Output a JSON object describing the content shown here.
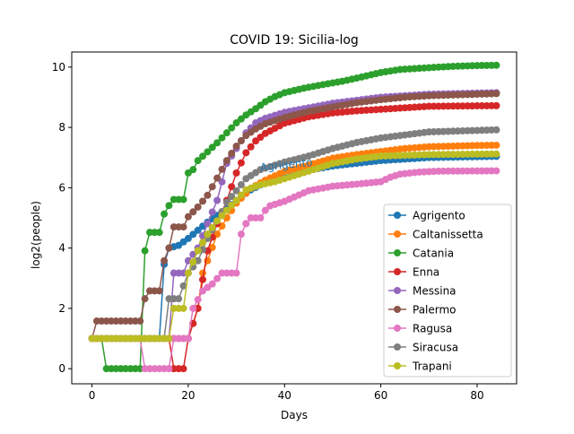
{
  "chart_data": {
    "type": "line",
    "title": "COVID 19: Sicilia-log",
    "xlabel": "Days",
    "ylabel": "log2(people)",
    "xlim": [
      -4.2,
      88.2
    ],
    "ylim": [
      -0.5,
      10.5
    ],
    "xticks": [
      0,
      20,
      40,
      60,
      80
    ],
    "yticks": [
      0,
      2,
      4,
      6,
      8,
      10
    ],
    "grid": false,
    "legend_position": "lower right",
    "annotation": {
      "text": "Agrigento",
      "x": 35,
      "y": 6.55,
      "color": "#1f77b4",
      "rotation_deg": -6
    },
    "series": [
      {
        "name": "Agrigento",
        "color": "#1f77b4",
        "keypoints": [
          [
            0,
            1
          ],
          [
            14,
            1
          ],
          [
            15,
            0
          ],
          [
            15,
            3.46
          ],
          [
            16,
            4
          ],
          [
            18,
            4.09
          ],
          [
            20,
            4.32
          ],
          [
            24,
            4.86
          ],
          [
            28,
            5.3
          ],
          [
            30,
            5.58
          ],
          [
            33,
            5.93
          ],
          [
            36,
            6.17
          ],
          [
            38,
            6.23
          ],
          [
            40,
            6.32
          ],
          [
            43,
            6.46
          ],
          [
            46,
            6.61
          ],
          [
            50,
            6.72
          ],
          [
            55,
            6.81
          ],
          [
            60,
            6.9
          ],
          [
            70,
            7
          ],
          [
            84,
            7.04
          ]
        ]
      },
      {
        "name": "Caltanissetta",
        "color": "#ff7f0e",
        "keypoints": [
          [
            0,
            1
          ],
          [
            16,
            1
          ],
          [
            20,
            1
          ],
          [
            22,
            2
          ],
          [
            23,
            3.17
          ],
          [
            24,
            3.58
          ],
          [
            26,
            4.46
          ],
          [
            28,
            5.0
          ],
          [
            30,
            5.49
          ],
          [
            33,
            5.98
          ],
          [
            36,
            6.25
          ],
          [
            40,
            6.54
          ],
          [
            45,
            6.75
          ],
          [
            50,
            6.98
          ],
          [
            55,
            7.1
          ],
          [
            60,
            7.2
          ],
          [
            65,
            7.3
          ],
          [
            70,
            7.36
          ],
          [
            80,
            7.4
          ],
          [
            84,
            7.41
          ]
        ]
      },
      {
        "name": "Catania",
        "color": "#2ca02c",
        "keypoints": [
          [
            0,
            1
          ],
          [
            2,
            1
          ],
          [
            3,
            0
          ],
          [
            10,
            0
          ],
          [
            11,
            3.91
          ],
          [
            12,
            4.52
          ],
          [
            14,
            4.52
          ],
          [
            15,
            5.13
          ],
          [
            16,
            5.41
          ],
          [
            17,
            5.61
          ],
          [
            19,
            5.61
          ],
          [
            20,
            6.49
          ],
          [
            21,
            6.6
          ],
          [
            22,
            6.9
          ],
          [
            24,
            7.19
          ],
          [
            26,
            7.49
          ],
          [
            28,
            7.82
          ],
          [
            30,
            8.15
          ],
          [
            32,
            8.41
          ],
          [
            34,
            8.62
          ],
          [
            36,
            8.85
          ],
          [
            38,
            9.02
          ],
          [
            40,
            9.15
          ],
          [
            44,
            9.3
          ],
          [
            48,
            9.42
          ],
          [
            52,
            9.53
          ],
          [
            56,
            9.67
          ],
          [
            60,
            9.82
          ],
          [
            64,
            9.92
          ],
          [
            68,
            9.96
          ],
          [
            72,
            10.0
          ],
          [
            76,
            10.03
          ],
          [
            80,
            10.05
          ],
          [
            84,
            10.06
          ]
        ]
      },
      {
        "name": "Enna",
        "color": "#d62728",
        "keypoints": [
          [
            0,
            1
          ],
          [
            16,
            1
          ],
          [
            17,
            0
          ],
          [
            19,
            0
          ],
          [
            20,
            1
          ],
          [
            22,
            2
          ],
          [
            24,
            3.91
          ],
          [
            26,
            4.81
          ],
          [
            28,
            5.58
          ],
          [
            30,
            6.49
          ],
          [
            32,
            7.16
          ],
          [
            34,
            7.55
          ],
          [
            36,
            7.8
          ],
          [
            38,
            7.97
          ],
          [
            40,
            8.14
          ],
          [
            45,
            8.35
          ],
          [
            50,
            8.48
          ],
          [
            55,
            8.55
          ],
          [
            60,
            8.6
          ],
          [
            65,
            8.65
          ],
          [
            70,
            8.7
          ],
          [
            84,
            8.72
          ]
        ]
      },
      {
        "name": "Messina",
        "color": "#9467bd",
        "keypoints": [
          [
            0,
            1
          ],
          [
            16,
            1
          ],
          [
            17,
            3.17
          ],
          [
            19,
            3.17
          ],
          [
            20,
            3.58
          ],
          [
            22,
            4.0
          ],
          [
            24,
            4.81
          ],
          [
            26,
            5.58
          ],
          [
            28,
            6.81
          ],
          [
            30,
            7.3
          ],
          [
            32,
            7.82
          ],
          [
            34,
            8.15
          ],
          [
            36,
            8.3
          ],
          [
            40,
            8.5
          ],
          [
            45,
            8.65
          ],
          [
            50,
            8.8
          ],
          [
            55,
            8.9
          ],
          [
            60,
            9.0
          ],
          [
            65,
            9.05
          ],
          [
            70,
            9.1
          ],
          [
            84,
            9.15
          ]
        ]
      },
      {
        "name": "Palermo",
        "color": "#8c564b",
        "keypoints": [
          [
            0,
            1
          ],
          [
            1,
            1.58
          ],
          [
            10,
            1.58
          ],
          [
            11,
            2.32
          ],
          [
            12,
            2.58
          ],
          [
            14,
            2.58
          ],
          [
            15,
            3.58
          ],
          [
            16,
            4.0
          ],
          [
            17,
            4.7
          ],
          [
            19,
            4.7
          ],
          [
            20,
            5.04
          ],
          [
            22,
            5.36
          ],
          [
            24,
            5.75
          ],
          [
            26,
            6.32
          ],
          [
            28,
            6.9
          ],
          [
            30,
            7.38
          ],
          [
            32,
            7.73
          ],
          [
            34,
            7.95
          ],
          [
            36,
            8.12
          ],
          [
            40,
            8.33
          ],
          [
            45,
            8.53
          ],
          [
            50,
            8.68
          ],
          [
            55,
            8.82
          ],
          [
            60,
            8.92
          ],
          [
            65,
            9.0
          ],
          [
            70,
            9.05
          ],
          [
            84,
            9.12
          ]
        ]
      },
      {
        "name": "Ragusa",
        "color": "#e377c2",
        "keypoints": [
          [
            0,
            1
          ],
          [
            10,
            1
          ],
          [
            11,
            0
          ],
          [
            16,
            0
          ],
          [
            17,
            1
          ],
          [
            20,
            1
          ],
          [
            21,
            2
          ],
          [
            23,
            2.58
          ],
          [
            25,
            2.81
          ],
          [
            27,
            3.17
          ],
          [
            30,
            3.17
          ],
          [
            31,
            4.46
          ],
          [
            32,
            4.81
          ],
          [
            33,
            5.0
          ],
          [
            35,
            5.0
          ],
          [
            36,
            5.25
          ],
          [
            37,
            5.4
          ],
          [
            40,
            5.55
          ],
          [
            45,
            5.9
          ],
          [
            50,
            6.05
          ],
          [
            55,
            6.12
          ],
          [
            60,
            6.2
          ],
          [
            62,
            6.35
          ],
          [
            64,
            6.45
          ],
          [
            68,
            6.52
          ],
          [
            72,
            6.55
          ],
          [
            84,
            6.56
          ]
        ]
      },
      {
        "name": "Siracusa",
        "color": "#7f7f7f",
        "keypoints": [
          [
            0,
            1
          ],
          [
            15,
            1
          ],
          [
            16,
            2.32
          ],
          [
            18,
            2.32
          ],
          [
            20,
            3.17
          ],
          [
            22,
            3.58
          ],
          [
            24,
            4.32
          ],
          [
            26,
            4.9
          ],
          [
            28,
            5.52
          ],
          [
            30,
            5.9
          ],
          [
            32,
            6.3
          ],
          [
            35,
            6.6
          ],
          [
            40,
            6.85
          ],
          [
            45,
            7.05
          ],
          [
            50,
            7.3
          ],
          [
            55,
            7.5
          ],
          [
            60,
            7.65
          ],
          [
            65,
            7.75
          ],
          [
            70,
            7.85
          ],
          [
            80,
            7.9
          ],
          [
            84,
            7.92
          ]
        ]
      },
      {
        "name": "Trapani",
        "color": "#bcbd22",
        "keypoints": [
          [
            0,
            1
          ],
          [
            16,
            1
          ],
          [
            17,
            2
          ],
          [
            19,
            2
          ],
          [
            20,
            3.17
          ],
          [
            22,
            3.91
          ],
          [
            24,
            4.46
          ],
          [
            26,
            4.9
          ],
          [
            28,
            5.25
          ],
          [
            30,
            5.58
          ],
          [
            32,
            5.93
          ],
          [
            35,
            6.1
          ],
          [
            38,
            6.2
          ],
          [
            40,
            6.3
          ],
          [
            45,
            6.55
          ],
          [
            50,
            6.8
          ],
          [
            55,
            6.95
          ],
          [
            60,
            7.05
          ],
          [
            70,
            7.1
          ],
          [
            84,
            7.12
          ]
        ]
      }
    ]
  }
}
